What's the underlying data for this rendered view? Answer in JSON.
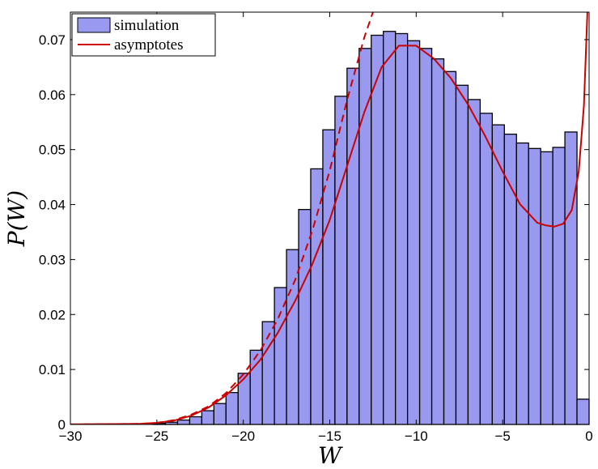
{
  "chart_data": {
    "type": "bar",
    "xlabel": "W",
    "ylabel": "P(W)",
    "xlim": [
      -30,
      0
    ],
    "ylim": [
      0,
      0.075
    ],
    "grid": false,
    "legend_placement": "top-left",
    "x_ticks": [
      "−30",
      "−25",
      "−20",
      "−15",
      "−10",
      "−5",
      "0"
    ],
    "y_ticks": [
      "0",
      "0.01",
      "0.02",
      "0.03",
      "0.04",
      "0.05",
      "0.06",
      "0.07"
    ],
    "series": [
      {
        "name": "simulation",
        "kind": "histogram",
        "color": "#9999f0",
        "edge_color": "#000000",
        "bin_width": 0.7,
        "bin_starts": [
          -25.2,
          -24.5,
          -23.8,
          -23.1,
          -22.4,
          -21.7,
          -21.0,
          -20.3,
          -19.6,
          -18.9,
          -18.2,
          -17.5,
          -16.8,
          -16.1,
          -15.4,
          -14.7,
          -14.0,
          -13.3,
          -12.6,
          -11.9,
          -11.2,
          -10.5,
          -9.8,
          -9.1,
          -8.4,
          -7.7,
          -7.0,
          -6.3,
          -5.6,
          -4.9,
          -4.2,
          -3.5,
          -2.8,
          -2.1,
          -1.4,
          -0.7
        ],
        "values": [
          0.0002,
          0.0004,
          0.0008,
          0.0014,
          0.0025,
          0.0038,
          0.0058,
          0.0093,
          0.0135,
          0.0187,
          0.0249,
          0.0318,
          0.0391,
          0.0465,
          0.0536,
          0.0597,
          0.0648,
          0.0684,
          0.0708,
          0.0715,
          0.0711,
          0.0698,
          0.0684,
          0.0665,
          0.0642,
          0.0617,
          0.0591,
          0.0566,
          0.0545,
          0.0528,
          0.0512,
          0.0502,
          0.0496,
          0.0504,
          0.0532,
          0.0046
        ]
      },
      {
        "name": "asymptotes",
        "kind": "line",
        "color": "#cc0000",
        "x": [
          -30,
          -26,
          -25,
          -24,
          -23,
          -22,
          -21,
          -20,
          -19,
          -18,
          -17,
          -16,
          -15,
          -14,
          -13,
          -12,
          -11,
          -10,
          -9,
          -8,
          -7,
          -6,
          -5,
          -4,
          -3,
          -2.5,
          -2,
          -1.5,
          -1,
          -0.6,
          -0.3,
          -0.1
        ],
        "y": [
          0,
          0.0001,
          0.0003,
          0.0007,
          0.0016,
          0.0031,
          0.0053,
          0.0082,
          0.0118,
          0.0167,
          0.0225,
          0.0292,
          0.0372,
          0.047,
          0.0568,
          0.065,
          0.0689,
          0.0689,
          0.0666,
          0.063,
          0.0582,
          0.0524,
          0.046,
          0.0401,
          0.0367,
          0.0362,
          0.036,
          0.0365,
          0.039,
          0.046,
          0.058,
          0.075
        ]
      },
      {
        "name": "",
        "kind": "line",
        "style": "dashed",
        "color": "#cc0000",
        "x": [
          -30,
          -26,
          -25,
          -24,
          -23,
          -22,
          -21,
          -20,
          -19,
          -18,
          -17,
          -16,
          -15,
          -14,
          -13,
          -12.5
        ],
        "y": [
          0,
          0.0001,
          0.0003,
          0.0008,
          0.0018,
          0.0033,
          0.0057,
          0.0091,
          0.0135,
          0.0192,
          0.0263,
          0.0353,
          0.0462,
          0.059,
          0.0704,
          0.075
        ]
      }
    ]
  }
}
